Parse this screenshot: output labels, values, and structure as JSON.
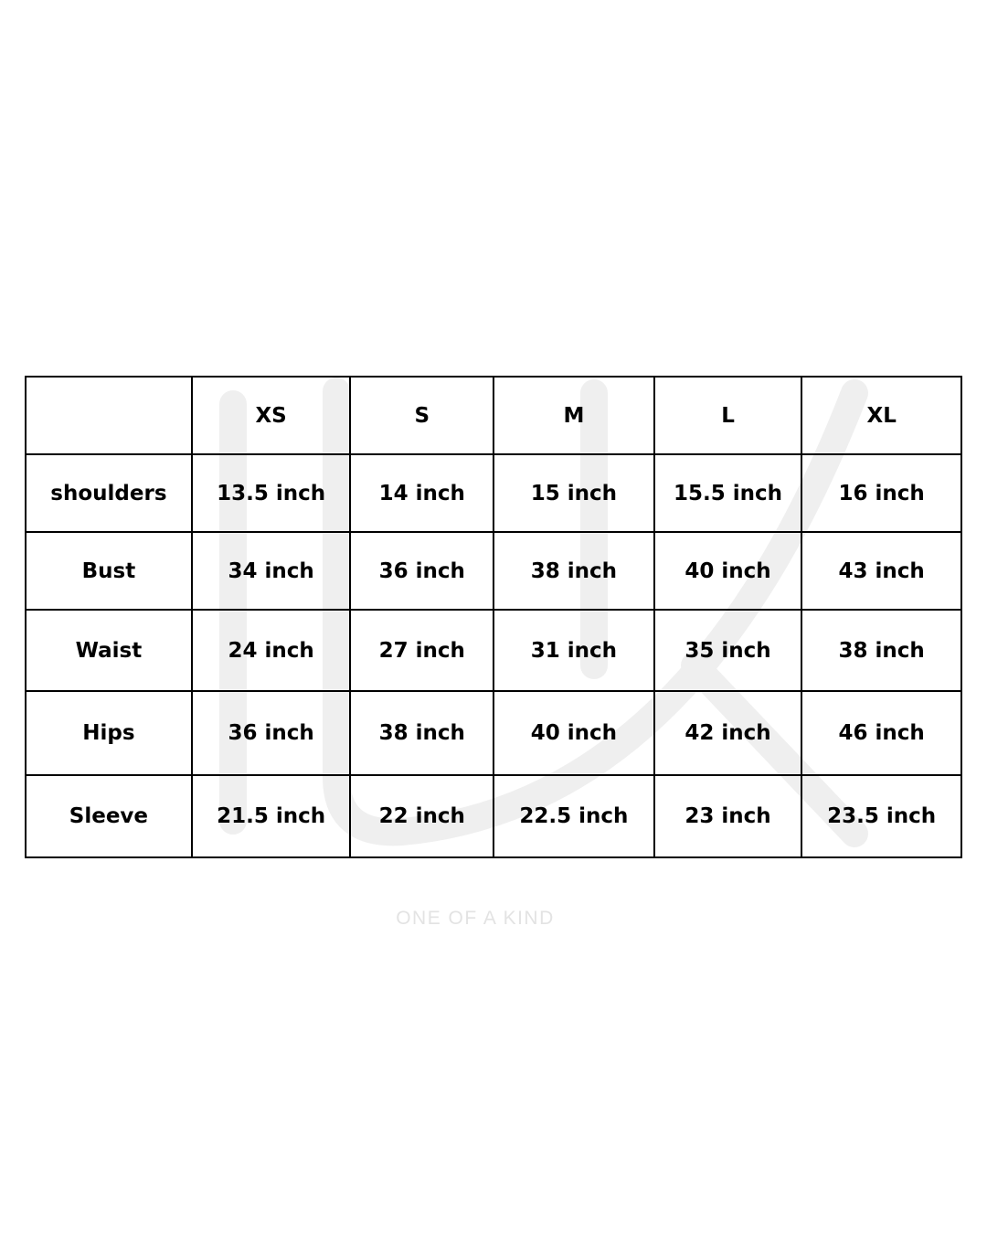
{
  "table": {
    "headers": [
      "",
      "XS",
      "S",
      "M",
      "L",
      "XL"
    ],
    "rows": [
      {
        "label": "shoulders",
        "values": [
          "13.5 inch",
          "14 inch",
          "15 inch",
          "15.5 inch",
          "16 inch"
        ]
      },
      {
        "label": "Bust",
        "values": [
          "34 inch",
          "36 inch",
          "38 inch",
          "40 inch",
          "43 inch"
        ]
      },
      {
        "label": "Waist",
        "values": [
          "24 inch",
          "27 inch",
          "31 inch",
          "35 inch",
          "38 inch"
        ]
      },
      {
        "label": "Hips",
        "values": [
          "36 inch",
          "38 inch",
          "40 inch",
          "42 inch",
          "46 inch"
        ]
      },
      {
        "label": "Sleeve",
        "values": [
          "21.5 inch",
          "22 inch",
          "22.5 inch",
          "23 inch",
          "23.5 inch"
        ]
      }
    ]
  },
  "watermark": {
    "tagline": "ONE OF A KIND",
    "color": "#efefef",
    "tagline_color": "#e3e3e3"
  }
}
